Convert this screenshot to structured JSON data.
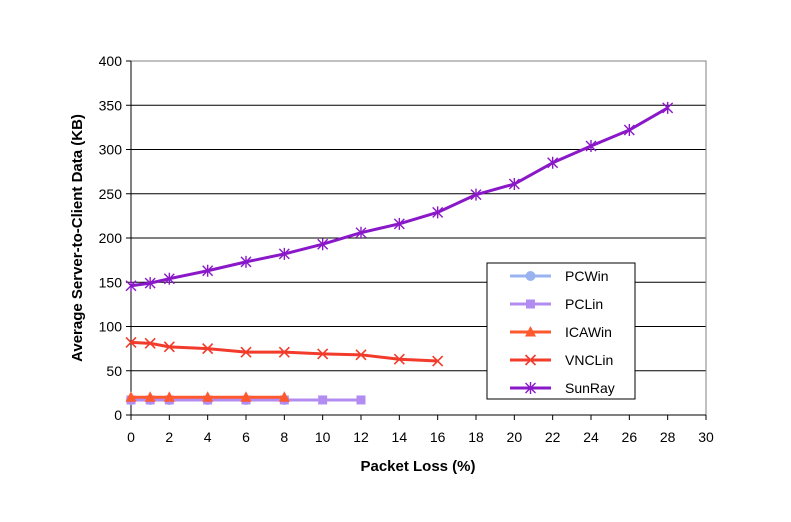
{
  "chart_data": {
    "type": "line",
    "title": "",
    "xlabel": "Packet Loss (%)",
    "ylabel": "Average Server-to-Client Data (KB)",
    "xlim": [
      0,
      30
    ],
    "ylim": [
      0,
      400
    ],
    "x_ticks": [
      0,
      2,
      4,
      6,
      8,
      10,
      12,
      14,
      16,
      18,
      20,
      22,
      24,
      26,
      28,
      30
    ],
    "y_ticks": [
      0,
      50,
      100,
      150,
      200,
      250,
      300,
      350,
      400
    ],
    "grid": "horizontal",
    "legend_position": "right-center",
    "series": [
      {
        "name": "PCWin",
        "marker": "circle",
        "color": "#99b3f0",
        "x": [
          0,
          1,
          2,
          4,
          6,
          8
        ],
        "y": [
          17,
          17,
          17,
          17,
          17,
          17
        ]
      },
      {
        "name": "PCLin",
        "marker": "square",
        "color": "#b38cf2",
        "x": [
          0,
          1,
          2,
          4,
          6,
          8,
          10,
          12
        ],
        "y": [
          17,
          17,
          17,
          17,
          17,
          17,
          17,
          17
        ]
      },
      {
        "name": "ICAWin",
        "marker": "triangle",
        "color": "#ff5a2e",
        "x": [
          0,
          1,
          2,
          4,
          6,
          8
        ],
        "y": [
          20,
          20,
          20,
          20,
          20,
          20
        ]
      },
      {
        "name": "VNCLin",
        "marker": "x",
        "color": "#f23b2b",
        "x": [
          0,
          1,
          2,
          4,
          6,
          8,
          10,
          12,
          14,
          16
        ],
        "y": [
          82,
          81,
          77,
          75,
          71,
          71,
          69,
          68,
          63,
          61
        ]
      },
      {
        "name": "SunRay",
        "marker": "star",
        "color": "#8a18c9",
        "x": [
          0,
          1,
          2,
          4,
          6,
          8,
          10,
          12,
          14,
          16,
          18,
          20,
          22,
          24,
          26,
          28
        ],
        "y": [
          146,
          149,
          154,
          163,
          173,
          182,
          193,
          206,
          216,
          229,
          249,
          261,
          285,
          304,
          322,
          347
        ]
      }
    ]
  }
}
